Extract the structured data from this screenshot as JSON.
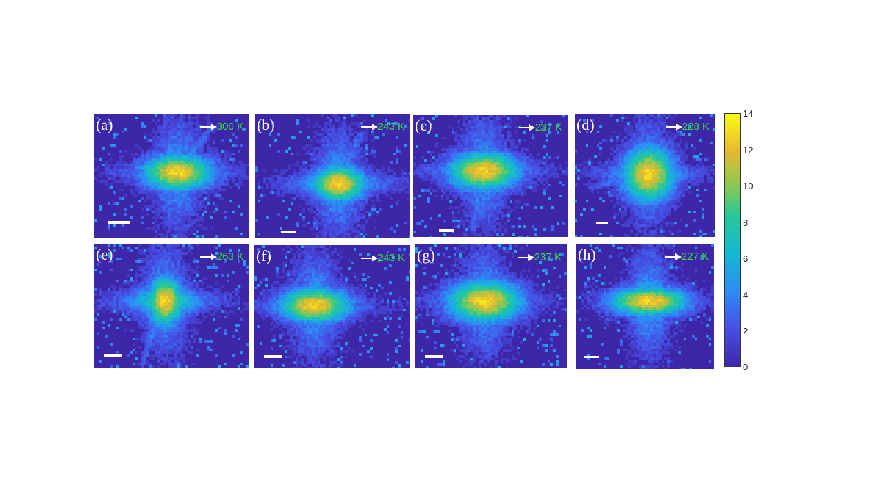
{
  "figure": {
    "panels": [
      {
        "letter": "(a)",
        "temperature": "300 K",
        "hotspot": "center",
        "streak": "upper-right"
      },
      {
        "letter": "(b)",
        "temperature": "243 K",
        "hotspot": "center",
        "streak": "upper-right"
      },
      {
        "letter": "(c)",
        "temperature": "237 K",
        "hotspot": "upper-center",
        "streak": "down"
      },
      {
        "letter": "(d)",
        "temperature": "228 K",
        "hotspot": "center",
        "streak": "left"
      },
      {
        "letter": "(e)",
        "temperature": "263 K",
        "hotspot": "center",
        "streak": "diagonal"
      },
      {
        "letter": "(f)",
        "temperature": "243 K",
        "hotspot": "center-left",
        "streak": "none"
      },
      {
        "letter": "(g)",
        "temperature": "237 K",
        "hotspot": "center",
        "streak": "none"
      },
      {
        "letter": "(h)",
        "temperature": "227 K",
        "hotspot": "center",
        "streak": "horizontal"
      }
    ],
    "colorbar": {
      "min": 0,
      "max": 14,
      "ticks": [
        "14",
        "12",
        "10",
        "8",
        "6",
        "4",
        "2",
        "0"
      ],
      "colormap": "parula"
    },
    "colors": {
      "background": "#3d26a8",
      "label_text": "#35e03a",
      "letter_text": "#ffffff"
    }
  }
}
